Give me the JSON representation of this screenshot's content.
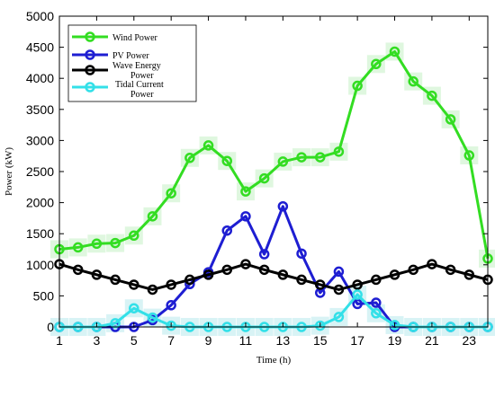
{
  "chart_data": {
    "type": "line",
    "title": "",
    "xlabel": "Time (h)",
    "ylabel": "Power (kW)",
    "xlim": [
      1,
      24
    ],
    "ylim": [
      0,
      5000
    ],
    "xticks": [
      1,
      3,
      5,
      7,
      9,
      11,
      13,
      15,
      17,
      19,
      21,
      23
    ],
    "yticks": [
      0,
      500,
      1000,
      1500,
      2000,
      2500,
      3000,
      3500,
      4000,
      4500,
      5000
    ],
    "legend_position": "top-left",
    "grid": false,
    "series": [
      {
        "name": "Wind Power",
        "color": "#33dd22",
        "x": [
          1,
          2,
          3,
          4,
          5,
          6,
          7,
          8,
          9,
          10,
          11,
          12,
          13,
          14,
          15,
          16,
          17,
          18,
          19,
          20,
          21,
          22,
          23,
          24
        ],
        "y": [
          1250,
          1280,
          1340,
          1350,
          1470,
          1780,
          2150,
          2720,
          2920,
          2670,
          2180,
          2390,
          2660,
          2730,
          2730,
          2820,
          3880,
          4230,
          4430,
          3950,
          3720,
          3340,
          2760,
          1100
        ]
      },
      {
        "name": "PV Power",
        "color": "#1e1ed2",
        "x": [
          1,
          2,
          3,
          4,
          5,
          6,
          7,
          8,
          9,
          10,
          11,
          12,
          13,
          14,
          15,
          16,
          17,
          18,
          19,
          20,
          21,
          22,
          23,
          24
        ],
        "y": [
          0,
          0,
          0,
          0,
          0,
          110,
          350,
          690,
          880,
          1550,
          1780,
          1170,
          1940,
          1180,
          550,
          890,
          370,
          390,
          0,
          0,
          0,
          0,
          0,
          0
        ]
      },
      {
        "name": "Wave Energy Power",
        "color": "#000000",
        "x": [
          1,
          2,
          3,
          4,
          5,
          6,
          7,
          8,
          9,
          10,
          11,
          12,
          13,
          14,
          15,
          16,
          17,
          18,
          19,
          20,
          21,
          22,
          23,
          24
        ],
        "y": [
          1010,
          920,
          840,
          760,
          680,
          600,
          680,
          760,
          840,
          920,
          1010,
          920,
          840,
          760,
          680,
          600,
          680,
          760,
          840,
          920,
          1010,
          920,
          840,
          760
        ]
      },
      {
        "name": "Tidal Current Power",
        "color": "#33e0e8",
        "x": [
          1,
          2,
          3,
          4,
          5,
          6,
          7,
          8,
          9,
          10,
          11,
          12,
          13,
          14,
          15,
          16,
          17,
          18,
          19,
          20,
          21,
          22,
          23,
          24
        ],
        "y": [
          0,
          0,
          0,
          60,
          300,
          150,
          20,
          0,
          0,
          0,
          0,
          0,
          0,
          0,
          20,
          160,
          520,
          220,
          30,
          0,
          0,
          0,
          0,
          0
        ]
      }
    ]
  },
  "legend": {
    "wind": "Wind Power",
    "pv": "PV Power",
    "wave_line1": "Wave Energy",
    "wave_line2": "Power",
    "tidal_line1": "Tidal Current",
    "tidal_line2": "Power"
  }
}
